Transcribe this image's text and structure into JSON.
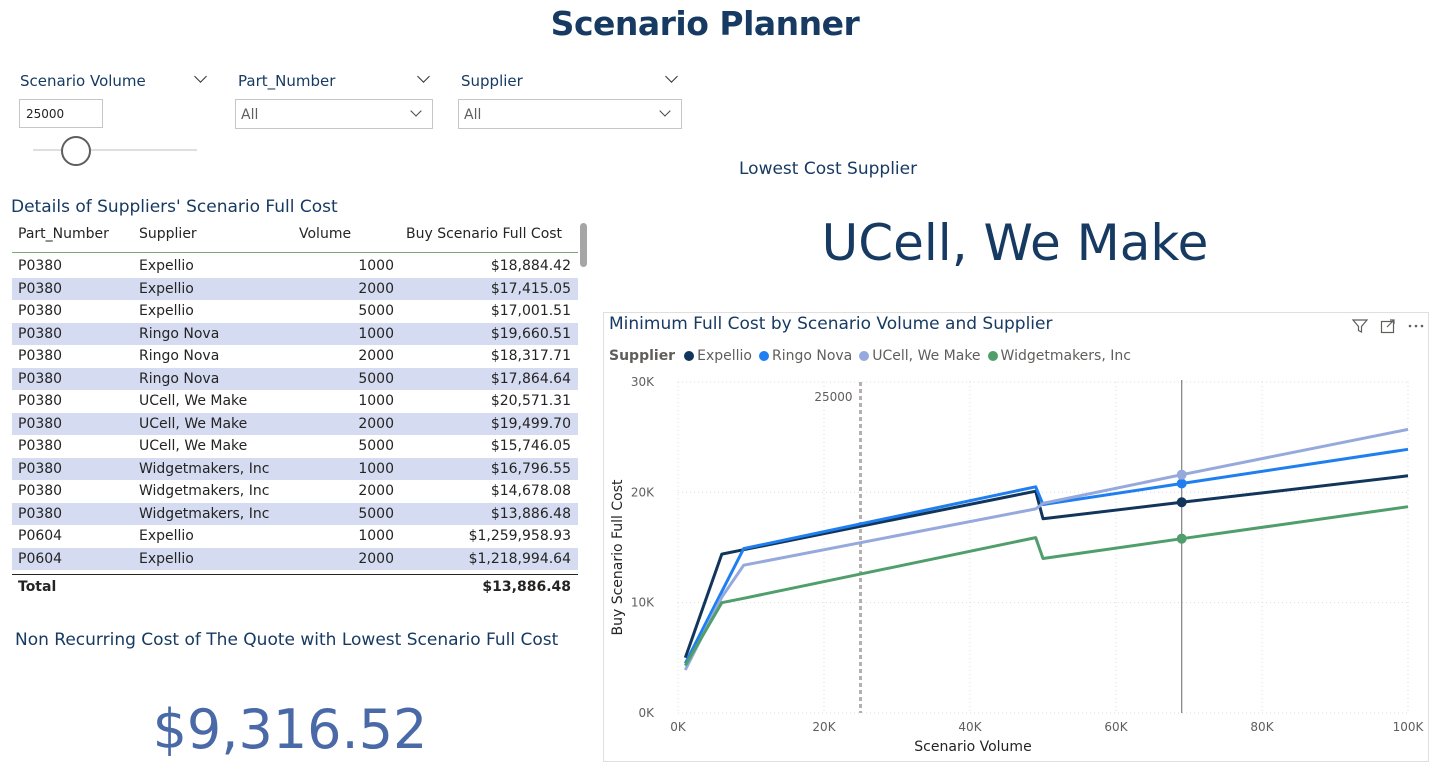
{
  "page": {
    "title": "Scenario Planner"
  },
  "slicers": {
    "scenario_volume": {
      "label": "Scenario Volume",
      "value": "25000",
      "slider_value": 25000,
      "slider_min": 0,
      "slider_max": 100000
    },
    "part_number": {
      "label": "Part_Number",
      "selected": "All"
    },
    "supplier": {
      "label": "Supplier",
      "selected": "All"
    }
  },
  "details_table": {
    "title": "Details of Suppliers' Scenario Full Cost",
    "columns": [
      "Part_Number",
      "Supplier",
      "Volume",
      "Buy Scenario Full Cost"
    ],
    "rows": [
      [
        "P0380",
        "Expellio",
        "1000",
        "$18,884.42"
      ],
      [
        "P0380",
        "Expellio",
        "2000",
        "$17,415.05"
      ],
      [
        "P0380",
        "Expellio",
        "5000",
        "$17,001.51"
      ],
      [
        "P0380",
        "Ringo Nova",
        "1000",
        "$19,660.51"
      ],
      [
        "P0380",
        "Ringo Nova",
        "2000",
        "$18,317.71"
      ],
      [
        "P0380",
        "Ringo Nova",
        "5000",
        "$17,864.64"
      ],
      [
        "P0380",
        "UCell, We Make",
        "1000",
        "$20,571.31"
      ],
      [
        "P0380",
        "UCell, We Make",
        "2000",
        "$19,499.70"
      ],
      [
        "P0380",
        "UCell, We Make",
        "5000",
        "$15,746.05"
      ],
      [
        "P0380",
        "Widgetmakers, Inc",
        "1000",
        "$16,796.55"
      ],
      [
        "P0380",
        "Widgetmakers, Inc",
        "2000",
        "$14,678.08"
      ],
      [
        "P0380",
        "Widgetmakers, Inc",
        "5000",
        "$13,886.48"
      ],
      [
        "P0604",
        "Expellio",
        "1000",
        "$1,259,958.93"
      ],
      [
        "P0604",
        "Expellio",
        "2000",
        "$1,218,994.64"
      ]
    ],
    "total": {
      "label": "Total",
      "value": "$13,886.48"
    }
  },
  "lowest_cost_supplier": {
    "title": "Lowest Cost Supplier",
    "value": "UCell, We Make"
  },
  "non_recurring": {
    "title": "Non Recurring Cost of The Quote with Lowest Scenario Full Cost",
    "value": "$9,316.52"
  },
  "icons": {
    "filter": "filter-icon",
    "focus": "focus-mode-icon",
    "more": "more-options-icon"
  },
  "chart_data": {
    "type": "line",
    "title": "Minimum Full Cost by Scenario Volume and Supplier",
    "legend_title": "Supplier",
    "legend_position": "top-left",
    "xlabel": "Scenario Volume",
    "ylabel": "Buy Scenario Full Cost",
    "xlim": [
      0,
      100000
    ],
    "ylim": [
      0,
      30000
    ],
    "x_ticks": [
      "0K",
      "20K",
      "40K",
      "60K",
      "80K",
      "100K"
    ],
    "y_ticks": [
      "0K",
      "10K",
      "20K",
      "30K"
    ],
    "grid": true,
    "reference_line": {
      "x": 25000,
      "label": "25000"
    },
    "hover_x": 69000,
    "series": [
      {
        "name": "Expellio",
        "color": "#12355b",
        "points": [
          [
            1000,
            5000
          ],
          [
            6000,
            14400
          ],
          [
            9000,
            14800
          ],
          [
            49000,
            20100
          ],
          [
            50000,
            17600
          ],
          [
            69000,
            19100
          ],
          [
            100000,
            21500
          ]
        ]
      },
      {
        "name": "Ringo Nova",
        "color": "#1f7ff0",
        "points": [
          [
            1000,
            4500
          ],
          [
            6000,
            11000
          ],
          [
            9000,
            14900
          ],
          [
            49000,
            20500
          ],
          [
            50000,
            18900
          ],
          [
            69000,
            20800
          ],
          [
            100000,
            23900
          ]
        ]
      },
      {
        "name": "UCell, We Make",
        "color": "#95a9dc",
        "points": [
          [
            1000,
            3900
          ],
          [
            6000,
            10500
          ],
          [
            9000,
            13400
          ],
          [
            49000,
            18500
          ],
          [
            50000,
            19000
          ],
          [
            69000,
            21600
          ],
          [
            100000,
            25700
          ]
        ]
      },
      {
        "name": "Widgetmakers, Inc",
        "color": "#4f9e6c",
        "points": [
          [
            1000,
            4300
          ],
          [
            6000,
            10000
          ],
          [
            9000,
            10400
          ],
          [
            49000,
            15900
          ],
          [
            50000,
            14000
          ],
          [
            69000,
            15800
          ],
          [
            100000,
            18700
          ]
        ]
      }
    ]
  }
}
